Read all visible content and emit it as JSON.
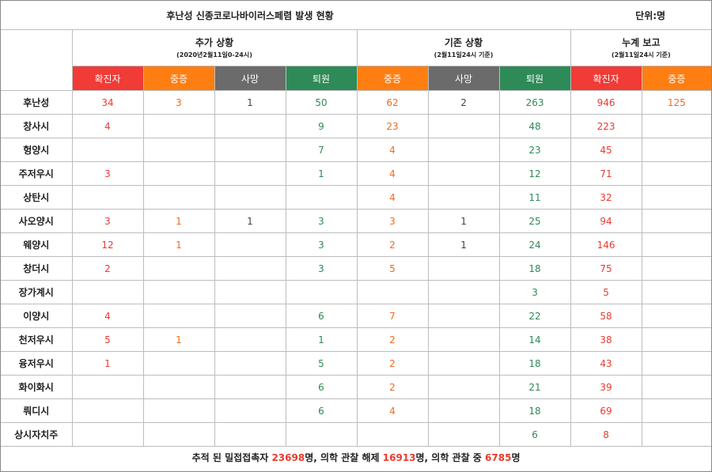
{
  "header": {
    "title": "후난성 신종코로나바이러스페렴 발생 현황",
    "unit": "단위:명"
  },
  "groups": [
    {
      "title": "추가 상황",
      "subtitle": "(2020년2월11일0-24시)"
    },
    {
      "title": "기존 상황",
      "subtitle": "(2월11일24시 기준)"
    },
    {
      "title": "누계 보고",
      "subtitle": "(2월11일24시 기준)"
    }
  ],
  "columns": [
    "확진자",
    "중증",
    "사망",
    "퇴원",
    "중증",
    "사망",
    "퇴원",
    "확진자",
    "중증"
  ],
  "column_colors": {
    "confirmed": "#f03b37",
    "severe": "#ff7e12",
    "death": "#6b6b6b",
    "recovered": "#2e8b57"
  },
  "rows": [
    {
      "region": "후난성",
      "cells": [
        "34",
        "3",
        "1",
        "50",
        "62",
        "2",
        "263",
        "946",
        "125"
      ]
    },
    {
      "region": "창사시",
      "cells": [
        "4",
        "",
        "",
        "9",
        "23",
        "",
        "48",
        "223",
        ""
      ]
    },
    {
      "region": "헝양시",
      "cells": [
        "",
        "",
        "",
        "7",
        "4",
        "",
        "23",
        "45",
        ""
      ]
    },
    {
      "region": "주저우시",
      "cells": [
        "3",
        "",
        "",
        "1",
        "4",
        "",
        "12",
        "71",
        ""
      ]
    },
    {
      "region": "상탄시",
      "cells": [
        "",
        "",
        "",
        "",
        "4",
        "",
        "11",
        "32",
        ""
      ]
    },
    {
      "region": "사오양시",
      "cells": [
        "3",
        "1",
        "1",
        "3",
        "3",
        "1",
        "25",
        "94",
        ""
      ]
    },
    {
      "region": "웨양시",
      "cells": [
        "12",
        "1",
        "",
        "3",
        "2",
        "1",
        "24",
        "146",
        ""
      ]
    },
    {
      "region": "창더시",
      "cells": [
        "2",
        "",
        "",
        "3",
        "5",
        "",
        "18",
        "75",
        ""
      ]
    },
    {
      "region": "장가계시",
      "cells": [
        "",
        "",
        "",
        "",
        "",
        "",
        "3",
        "5",
        ""
      ]
    },
    {
      "region": "이양시",
      "cells": [
        "4",
        "",
        "",
        "6",
        "7",
        "",
        "22",
        "58",
        ""
      ]
    },
    {
      "region": "천저우시",
      "cells": [
        "5",
        "1",
        "",
        "1",
        "2",
        "",
        "14",
        "38",
        ""
      ]
    },
    {
      "region": "융저우시",
      "cells": [
        "1",
        "",
        "",
        "5",
        "2",
        "",
        "18",
        "43",
        ""
      ]
    },
    {
      "region": "화이화시",
      "cells": [
        "",
        "",
        "",
        "6",
        "2",
        "",
        "21",
        "39",
        ""
      ]
    },
    {
      "region": "뤄디시",
      "cells": [
        "",
        "",
        "",
        "6",
        "4",
        "",
        "18",
        "69",
        ""
      ]
    },
    {
      "region": "상시자치주",
      "cells": [
        "",
        "",
        "",
        "",
        "",
        "",
        "6",
        "8",
        ""
      ]
    }
  ],
  "footer": {
    "prefix": "추적 된 밀접접촉자 ",
    "contacts": "23698",
    "part2": "명, 의학 관찰 해제 ",
    "released": "16913",
    "part3": "명, 의학 관찰 중 ",
    "observing": "6785",
    "suffix": "명"
  }
}
